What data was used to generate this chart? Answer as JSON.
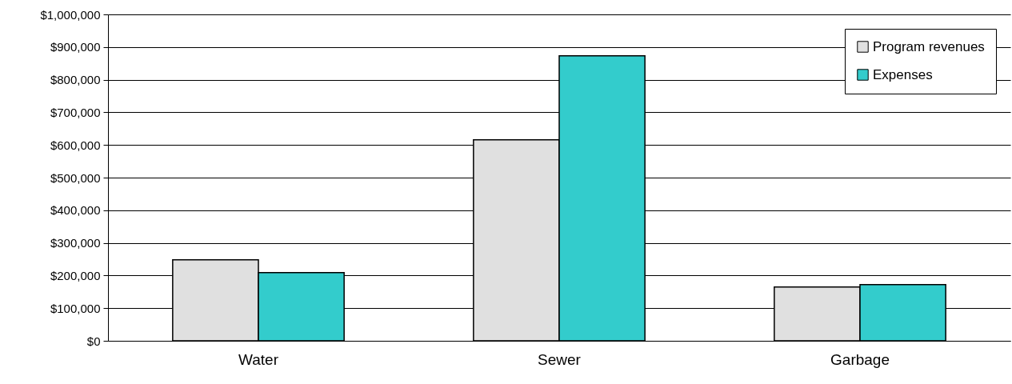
{
  "chart_data": {
    "type": "bar",
    "categories": [
      "Water",
      "Sewer",
      "Garbage"
    ],
    "series": [
      {
        "name": "Program revenues",
        "color": "#e0e0e0",
        "values": [
          248000,
          616000,
          165000
        ]
      },
      {
        "name": "Expenses",
        "color": "#33cccc",
        "values": [
          209000,
          873000,
          172000
        ]
      }
    ],
    "ylim": [
      0,
      1000000
    ],
    "yticks": [
      {
        "value": 0,
        "label": "$0"
      },
      {
        "value": 100000,
        "label": "$100,000"
      },
      {
        "value": 200000,
        "label": "$200,000"
      },
      {
        "value": 300000,
        "label": "$300,000"
      },
      {
        "value": 400000,
        "label": "$400,000"
      },
      {
        "value": 500000,
        "label": "$500,000"
      },
      {
        "value": 600000,
        "label": "$600,000"
      },
      {
        "value": 700000,
        "label": "$700,000"
      },
      {
        "value": 800000,
        "label": "$800,000"
      },
      {
        "value": 900000,
        "label": "$900,000"
      },
      {
        "value": 1000000,
        "label": "$1,000,000"
      }
    ],
    "grid": "y",
    "legend": "top right"
  }
}
